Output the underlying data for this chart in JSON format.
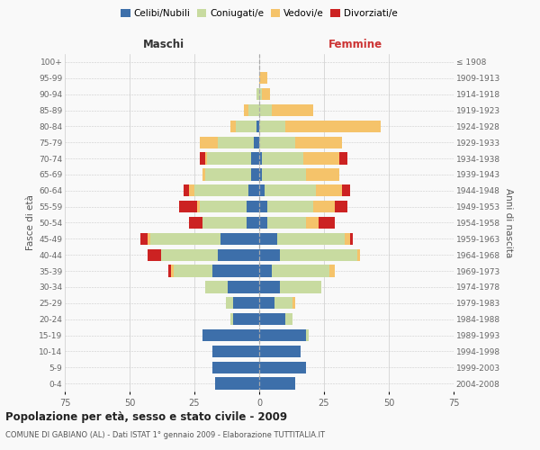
{
  "age_groups": [
    "0-4",
    "5-9",
    "10-14",
    "15-19",
    "20-24",
    "25-29",
    "30-34",
    "35-39",
    "40-44",
    "45-49",
    "50-54",
    "55-59",
    "60-64",
    "65-69",
    "70-74",
    "75-79",
    "80-84",
    "85-89",
    "90-94",
    "95-99",
    "100+"
  ],
  "birth_years": [
    "2004-2008",
    "1999-2003",
    "1994-1998",
    "1989-1993",
    "1984-1988",
    "1979-1983",
    "1974-1978",
    "1969-1973",
    "1964-1968",
    "1959-1963",
    "1954-1958",
    "1949-1953",
    "1944-1948",
    "1939-1943",
    "1934-1938",
    "1929-1933",
    "1924-1928",
    "1919-1923",
    "1914-1918",
    "1909-1913",
    "≤ 1908"
  ],
  "maschi": {
    "celibi": [
      17,
      18,
      18,
      22,
      10,
      10,
      12,
      18,
      16,
      15,
      5,
      5,
      4,
      3,
      3,
      2,
      1,
      0,
      0,
      0,
      0
    ],
    "coniugati": [
      0,
      0,
      0,
      0,
      1,
      3,
      9,
      15,
      22,
      27,
      17,
      18,
      21,
      18,
      17,
      14,
      8,
      4,
      1,
      0,
      0
    ],
    "vedovi": [
      0,
      0,
      0,
      0,
      0,
      0,
      0,
      1,
      0,
      1,
      0,
      1,
      2,
      1,
      1,
      7,
      2,
      2,
      0,
      0,
      0
    ],
    "divorziati": [
      0,
      0,
      0,
      0,
      0,
      0,
      0,
      1,
      5,
      3,
      5,
      7,
      2,
      0,
      2,
      0,
      0,
      0,
      0,
      0,
      0
    ]
  },
  "femmine": {
    "nubili": [
      14,
      18,
      16,
      18,
      10,
      6,
      8,
      5,
      8,
      7,
      3,
      3,
      2,
      1,
      1,
      0,
      0,
      0,
      0,
      0,
      0
    ],
    "coniugate": [
      0,
      0,
      0,
      1,
      3,
      7,
      16,
      22,
      30,
      26,
      15,
      18,
      20,
      17,
      16,
      14,
      10,
      5,
      1,
      0,
      0
    ],
    "vedove": [
      0,
      0,
      0,
      0,
      0,
      1,
      0,
      2,
      1,
      2,
      5,
      8,
      10,
      13,
      14,
      18,
      37,
      16,
      3,
      3,
      0
    ],
    "divorziate": [
      0,
      0,
      0,
      0,
      0,
      0,
      0,
      0,
      0,
      1,
      6,
      5,
      3,
      0,
      3,
      0,
      0,
      0,
      0,
      0,
      0
    ]
  },
  "colors": {
    "celibi": "#3d6faa",
    "coniugati": "#c8dba0",
    "vedovi": "#f5c36a",
    "divorziati": "#cc2222"
  },
  "title": "Popolazione per età, sesso e stato civile - 2009",
  "subtitle": "COMUNE DI GABIANO (AL) - Dati ISTAT 1° gennaio 2009 - Elaborazione TUTTITALIA.IT",
  "xlabel_left": "Maschi",
  "xlabel_right": "Femmine",
  "ylabel_left": "Fasce di età",
  "ylabel_right": "Anni di nascita",
  "xlim": 75,
  "background_color": "#f9f9f9",
  "grid_color": "#cccccc"
}
